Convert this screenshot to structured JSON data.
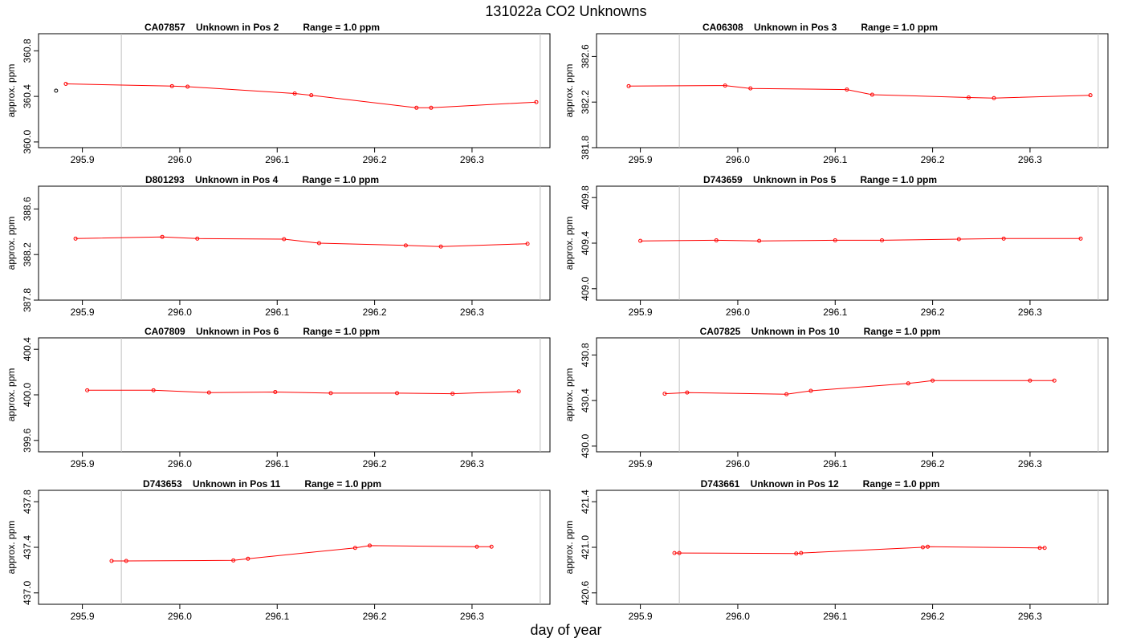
{
  "figure": {
    "title": "131022a  CO2 Unknowns",
    "xlabel": "day of year",
    "ylabel": "approx. ppm"
  },
  "colors": {
    "series": "#ff0000",
    "marker_outlier": "#000000",
    "vline": "#c0c0c0",
    "axis": "#000000"
  },
  "chart_data": [
    {
      "type": "line",
      "title": "CA07857    Unknown in Pos 2         Range = 1.0 ppm",
      "xlim": [
        295.855,
        296.38
      ],
      "ylim": [
        359.95,
        360.95
      ],
      "xticks": [
        295.9,
        296.0,
        296.1,
        296.2,
        296.3
      ],
      "yticks": [
        360.0,
        360.4,
        360.8
      ],
      "vlines": [
        295.94,
        296.37
      ],
      "x": [
        295.883,
        295.992,
        296.008,
        296.118,
        296.135,
        296.243,
        296.258,
        296.366
      ],
      "y": [
        360.51,
        360.49,
        360.485,
        360.425,
        360.41,
        360.3,
        360.3,
        360.35
      ],
      "outliers": [
        {
          "x": 295.873,
          "y": 360.45
        }
      ]
    },
    {
      "type": "line",
      "title": "CA06308    Unknown in Pos 3         Range = 1.0 ppm",
      "xlim": [
        295.855,
        296.38
      ],
      "ylim": [
        381.8,
        382.8
      ],
      "xticks": [
        295.9,
        296.0,
        296.1,
        296.2,
        296.3
      ],
      "yticks": [
        381.8,
        382.2,
        382.6
      ],
      "vlines": [
        295.94,
        296.37
      ],
      "x": [
        295.888,
        295.987,
        296.013,
        296.112,
        296.138,
        296.237,
        296.263,
        296.362
      ],
      "y": [
        382.34,
        382.345,
        382.32,
        382.31,
        382.265,
        382.24,
        382.235,
        382.26
      ]
    },
    {
      "type": "line",
      "title": "D801293    Unknown in Pos 4         Range = 1.0 ppm",
      "xlim": [
        295.855,
        296.38
      ],
      "ylim": [
        387.8,
        388.8
      ],
      "xticks": [
        295.9,
        296.0,
        296.1,
        296.2,
        296.3
      ],
      "yticks": [
        387.8,
        388.2,
        388.6
      ],
      "vlines": [
        295.94,
        296.37
      ],
      "x": [
        295.893,
        295.982,
        296.018,
        296.107,
        296.143,
        296.232,
        296.268,
        296.357
      ],
      "y": [
        388.34,
        388.355,
        388.34,
        388.335,
        388.3,
        388.28,
        388.27,
        388.295
      ]
    },
    {
      "type": "line",
      "title": "D743659    Unknown in Pos 5         Range = 1.0 ppm",
      "xlim": [
        295.855,
        296.38
      ],
      "ylim": [
        408.9,
        409.9
      ],
      "xticks": [
        295.9,
        296.0,
        296.1,
        296.2,
        296.3
      ],
      "yticks": [
        409.0,
        409.4,
        409.8
      ],
      "vlines": [
        295.94,
        296.37
      ],
      "x": [
        295.9,
        295.978,
        296.022,
        296.1,
        296.148,
        296.227,
        296.273,
        296.352
      ],
      "y": [
        409.42,
        409.425,
        409.42,
        409.425,
        409.425,
        409.435,
        409.44,
        409.44
      ]
    },
    {
      "type": "line",
      "title": "CA07809    Unknown in Pos 6         Range = 1.0 ppm",
      "xlim": [
        295.855,
        296.38
      ],
      "ylim": [
        399.5,
        400.5
      ],
      "xticks": [
        295.9,
        296.0,
        296.1,
        296.2,
        296.3
      ],
      "yticks": [
        399.6,
        400.0,
        400.4
      ],
      "vlines": [
        295.94,
        296.37
      ],
      "x": [
        295.905,
        295.973,
        296.03,
        296.098,
        296.155,
        296.223,
        296.28,
        296.348
      ],
      "y": [
        400.04,
        400.04,
        400.02,
        400.025,
        400.015,
        400.015,
        400.01,
        400.03
      ]
    },
    {
      "type": "line",
      "title": "CA07825    Unknown in Pos 10         Range = 1.0 ppm",
      "xlim": [
        295.855,
        296.38
      ],
      "ylim": [
        429.95,
        430.95
      ],
      "xticks": [
        295.9,
        296.0,
        296.1,
        296.2,
        296.3
      ],
      "yticks": [
        430.0,
        430.4,
        430.8
      ],
      "vlines": [
        295.94,
        296.37
      ],
      "x": [
        295.925,
        295.948,
        296.05,
        296.075,
        296.175,
        296.2,
        296.3,
        296.325
      ],
      "y": [
        430.46,
        430.47,
        430.455,
        430.485,
        430.55,
        430.575,
        430.575,
        430.575
      ]
    },
    {
      "type": "line",
      "title": "D743653    Unknown in Pos 11         Range = 1.0 ppm",
      "xlim": [
        295.855,
        296.38
      ],
      "ylim": [
        436.9,
        437.9
      ],
      "xticks": [
        295.9,
        296.0,
        296.1,
        296.2,
        296.3
      ],
      "yticks": [
        437.0,
        437.4,
        437.8
      ],
      "vlines": [
        295.94,
        296.37
      ],
      "x": [
        295.93,
        295.945,
        296.055,
        296.07,
        296.18,
        296.195,
        296.305,
        296.32
      ],
      "y": [
        437.28,
        437.28,
        437.285,
        437.3,
        437.395,
        437.415,
        437.405,
        437.405
      ]
    },
    {
      "type": "line",
      "title": "D743661    Unknown in Pos 12         Range = 1.0 ppm",
      "xlim": [
        295.855,
        296.38
      ],
      "ylim": [
        420.5,
        421.5
      ],
      "xticks": [
        295.9,
        296.0,
        296.1,
        296.2,
        296.3
      ],
      "yticks": [
        420.6,
        421.0,
        421.4
      ],
      "vlines": [
        295.94,
        296.37
      ],
      "x": [
        295.935,
        295.94,
        296.06,
        296.065,
        296.19,
        296.195,
        296.31,
        296.315
      ],
      "y": [
        420.95,
        420.95,
        420.945,
        420.95,
        421.0,
        421.005,
        420.995,
        420.995
      ]
    }
  ]
}
